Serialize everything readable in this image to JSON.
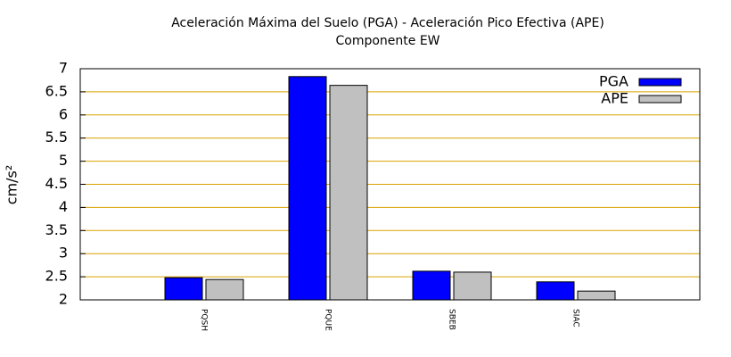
{
  "chart_data": {
    "type": "bar",
    "title": "Aceleración Máxima del Suelo (PGA) -  Aceleración Pico Efectiva (APE)",
    "subtitle": "Componente EW",
    "ylabel": "cm/s²",
    "categories": [
      "PQSH",
      "PQUE",
      "SBEB",
      "SIAC"
    ],
    "series": [
      {
        "name": "PGA",
        "color": "#0000ff",
        "values": [
          2.48,
          6.83,
          2.62,
          2.39
        ]
      },
      {
        "name": "APE",
        "color": "#c0c0c0",
        "values": [
          2.44,
          6.64,
          2.6,
          2.19
        ]
      }
    ],
    "ylim": [
      2,
      7
    ],
    "yticks": [
      2,
      2.5,
      3,
      3.5,
      4,
      4.5,
      5,
      5.5,
      6,
      6.5,
      7
    ],
    "grid": true,
    "grid_color": "#d9a300",
    "legend": "top-right"
  }
}
